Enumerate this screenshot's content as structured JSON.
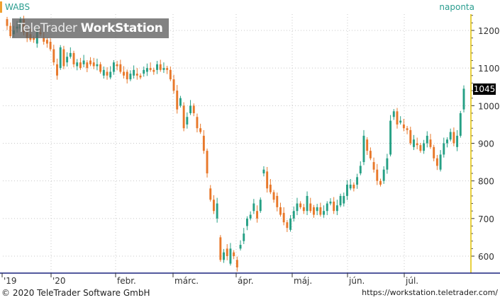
{
  "header": {
    "ticker": "WABS",
    "period": "naponta"
  },
  "watermark": {
    "brand_light": "TeleTrader ",
    "brand_bold": "WorkStation"
  },
  "footer": {
    "copyright": "© 2020 TeleTrader Software GmbH",
    "url": "https://workstation.teletrader.com/"
  },
  "last_price_label": "1045",
  "colors": {
    "up": "#26a085",
    "down": "#e8782a",
    "grid": "#c8c8c8",
    "ticker_accent": "#f0a030",
    "right_axis_line": "#e0c000",
    "bottom_axis_line": "#1a237e"
  },
  "chart_data": {
    "type": "candlestick",
    "title": "",
    "xlabel": "",
    "ylabel": "",
    "ylim": [
      550,
      1250
    ],
    "y_ticks": [
      600,
      700,
      800,
      900,
      1000,
      1100,
      1200
    ],
    "x_tick_labels": [
      "'19",
      "'20",
      "febr.",
      "márc.",
      "ápr.",
      "máj.",
      "jún.",
      "júl."
    ],
    "last_value": 1045,
    "series": [
      {
        "values": [
          [
            1230,
            1212
          ],
          [
            1212,
            1185
          ],
          [
            1190,
            1200
          ],
          [
            1205,
            1210
          ],
          [
            1205,
            1230
          ],
          [
            1230,
            1195
          ],
          [
            1195,
            1180
          ],
          [
            1190,
            1175
          ],
          [
            1180,
            1175
          ],
          [
            1165,
            1200
          ],
          [
            1195,
            1190
          ],
          [
            1180,
            1170
          ],
          [
            1175,
            1165
          ],
          [
            1170,
            1150
          ],
          [
            1150,
            1115
          ],
          [
            1110,
            1080
          ],
          [
            1100,
            1155
          ],
          [
            1150,
            1105
          ],
          [
            1115,
            1130
          ],
          [
            1130,
            1140
          ],
          [
            1140,
            1110
          ],
          [
            1105,
            1115
          ],
          [
            1115,
            1100
          ],
          [
            1110,
            1120
          ],
          [
            1115,
            1100
          ],
          [
            1120,
            1110
          ],
          [
            1115,
            1105
          ],
          [
            1105,
            1110
          ],
          [
            1110,
            1090
          ],
          [
            1080,
            1095
          ],
          [
            1090,
            1080
          ],
          [
            1075,
            1090
          ],
          [
            1090,
            1115
          ],
          [
            1110,
            1105
          ],
          [
            1110,
            1090
          ],
          [
            1090,
            1080
          ],
          [
            1090,
            1070
          ],
          [
            1070,
            1085
          ],
          [
            1080,
            1095
          ],
          [
            1085,
            1080
          ],
          [
            1080,
            1075
          ],
          [
            1085,
            1095
          ],
          [
            1090,
            1100
          ],
          [
            1100,
            1095
          ],
          [
            1095,
            1090
          ],
          [
            1095,
            1110
          ],
          [
            1110,
            1095
          ],
          [
            1095,
            1100
          ],
          [
            1100,
            1095
          ],
          [
            1095,
            1070
          ],
          [
            1070,
            1040
          ],
          [
            1040,
            990
          ],
          [
            1000,
            1020
          ],
          [
            1000,
            940
          ],
          [
            950,
            970
          ],
          [
            980,
            1000
          ],
          [
            1000,
            980
          ],
          [
            970,
            940
          ],
          [
            940,
            930
          ],
          [
            920,
            880
          ],
          [
            880,
            820
          ],
          [
            780,
            750
          ],
          [
            750,
            720
          ],
          [
            700,
            740
          ],
          [
            650,
            590
          ],
          [
            590,
            610
          ],
          [
            620,
            600
          ],
          [
            580,
            620
          ],
          [
            610,
            600
          ],
          [
            590,
            570
          ],
          [
            620,
            630
          ],
          [
            640,
            660
          ],
          [
            680,
            700
          ],
          [
            700,
            710
          ],
          [
            720,
            740
          ],
          [
            720,
            700
          ],
          [
            720,
            750
          ],
          [
            820,
            830
          ],
          [
            825,
            780
          ],
          [
            790,
            770
          ],
          [
            770,
            750
          ],
          [
            760,
            730
          ],
          [
            730,
            710
          ],
          [
            715,
            690
          ],
          [
            690,
            675
          ],
          [
            670,
            700
          ],
          [
            700,
            720
          ],
          [
            720,
            740
          ],
          [
            740,
            730
          ],
          [
            730,
            720
          ],
          [
            720,
            760
          ],
          [
            740,
            720
          ],
          [
            730,
            710
          ],
          [
            720,
            730
          ],
          [
            730,
            710
          ],
          [
            710,
            720
          ],
          [
            720,
            740
          ],
          [
            740,
            745
          ],
          [
            745,
            720
          ],
          [
            720,
            735
          ],
          [
            735,
            760
          ],
          [
            740,
            760
          ],
          [
            760,
            790
          ],
          [
            780,
            790
          ],
          [
            790,
            780
          ],
          [
            790,
            810
          ],
          [
            820,
            840
          ],
          [
            850,
            920
          ],
          [
            910,
            880
          ],
          [
            880,
            860
          ],
          [
            850,
            830
          ],
          [
            830,
            800
          ],
          [
            800,
            790
          ],
          [
            800,
            830
          ],
          [
            830,
            860
          ],
          [
            870,
            960
          ],
          [
            970,
            985
          ],
          [
            985,
            950
          ],
          [
            955,
            960
          ],
          [
            950,
            940
          ],
          [
            940,
            935
          ],
          [
            935,
            900
          ],
          [
            890,
            910
          ],
          [
            900,
            895
          ],
          [
            895,
            880
          ],
          [
            880,
            900
          ],
          [
            900,
            920
          ],
          [
            910,
            890
          ],
          [
            890,
            860
          ],
          [
            860,
            840
          ],
          [
            830,
            870
          ],
          [
            870,
            900
          ],
          [
            900,
            910
          ],
          [
            910,
            930
          ],
          [
            930,
            900
          ],
          [
            890,
            920
          ],
          [
            920,
            980
          ],
          [
            990,
            1045
          ]
        ]
      }
    ]
  }
}
